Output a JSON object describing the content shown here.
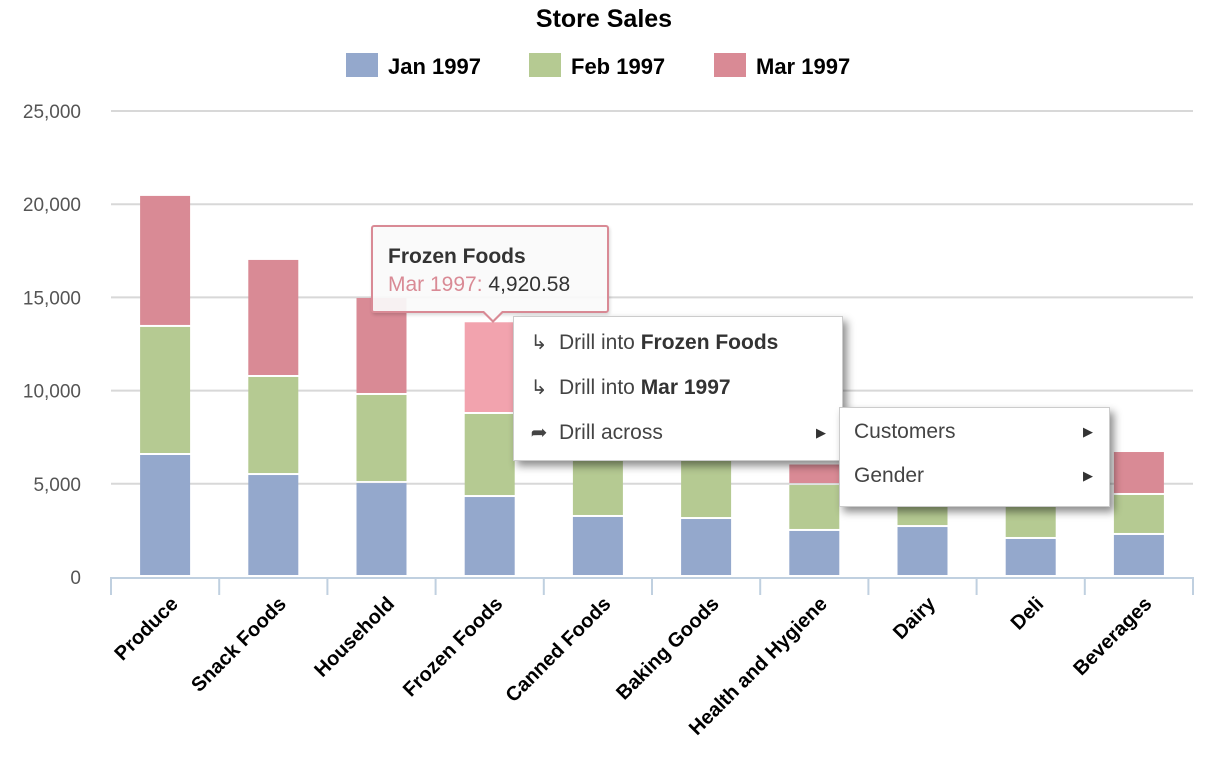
{
  "chart_data": {
    "type": "bar",
    "stacked": true,
    "title": "Store Sales",
    "xlabel": "",
    "ylabel": "",
    "ylim": [
      0,
      25000
    ],
    "yticks": [
      0,
      5000,
      10000,
      15000,
      20000,
      25000
    ],
    "ytick_labels": [
      "0",
      "5,000",
      "10,000",
      "15,000",
      "20,000",
      "25,000"
    ],
    "grid": true,
    "legend_position": "top-center",
    "categories": [
      "Produce",
      "Snack Foods",
      "Household",
      "Frozen Foods",
      "Canned Foods",
      "Baking Goods",
      "Health and Hygiene",
      "Dairy",
      "Deli",
      "Beverages"
    ],
    "series": [
      {
        "name": "Jan 1997",
        "color": "#94a8cc",
        "values": [
          6545,
          5470,
          5040,
          4290,
          3220,
          3110,
          2470,
          2680,
          2040,
          2255
        ]
      },
      {
        "name": "Feb 1997",
        "color": "#b5ca92",
        "values": [
          6870,
          5260,
          4725,
          4455,
          3400,
          3300,
          2465,
          2200,
          2250,
          2145
        ]
      },
      {
        "name": "Mar 1997",
        "color": "#d98a95",
        "values": [
          7030,
          6280,
          5205,
          4920.58,
          3400,
          2900,
          1100,
          2000,
          2100,
          2305
        ]
      }
    ],
    "highlight": {
      "category": "Frozen Foods",
      "series": "Mar 1997",
      "color": "#f2a3ae"
    }
  },
  "tooltip": {
    "title": "Frozen Foods",
    "series_label": "Mar 1997:",
    "value": "4,920.58"
  },
  "context_menu": {
    "items": [
      {
        "icon": "drill-down-icon",
        "prefix": "Drill into ",
        "bold": "Frozen Foods"
      },
      {
        "icon": "drill-down-icon",
        "prefix": "Drill into ",
        "bold": "Mar 1997"
      },
      {
        "icon": "share-arrow-icon",
        "prefix": "Drill across",
        "bold": "",
        "has_submenu": true
      }
    ],
    "submenu": [
      {
        "label": "Customers",
        "has_submenu": true
      },
      {
        "label": "Gender",
        "has_submenu": true
      }
    ]
  }
}
